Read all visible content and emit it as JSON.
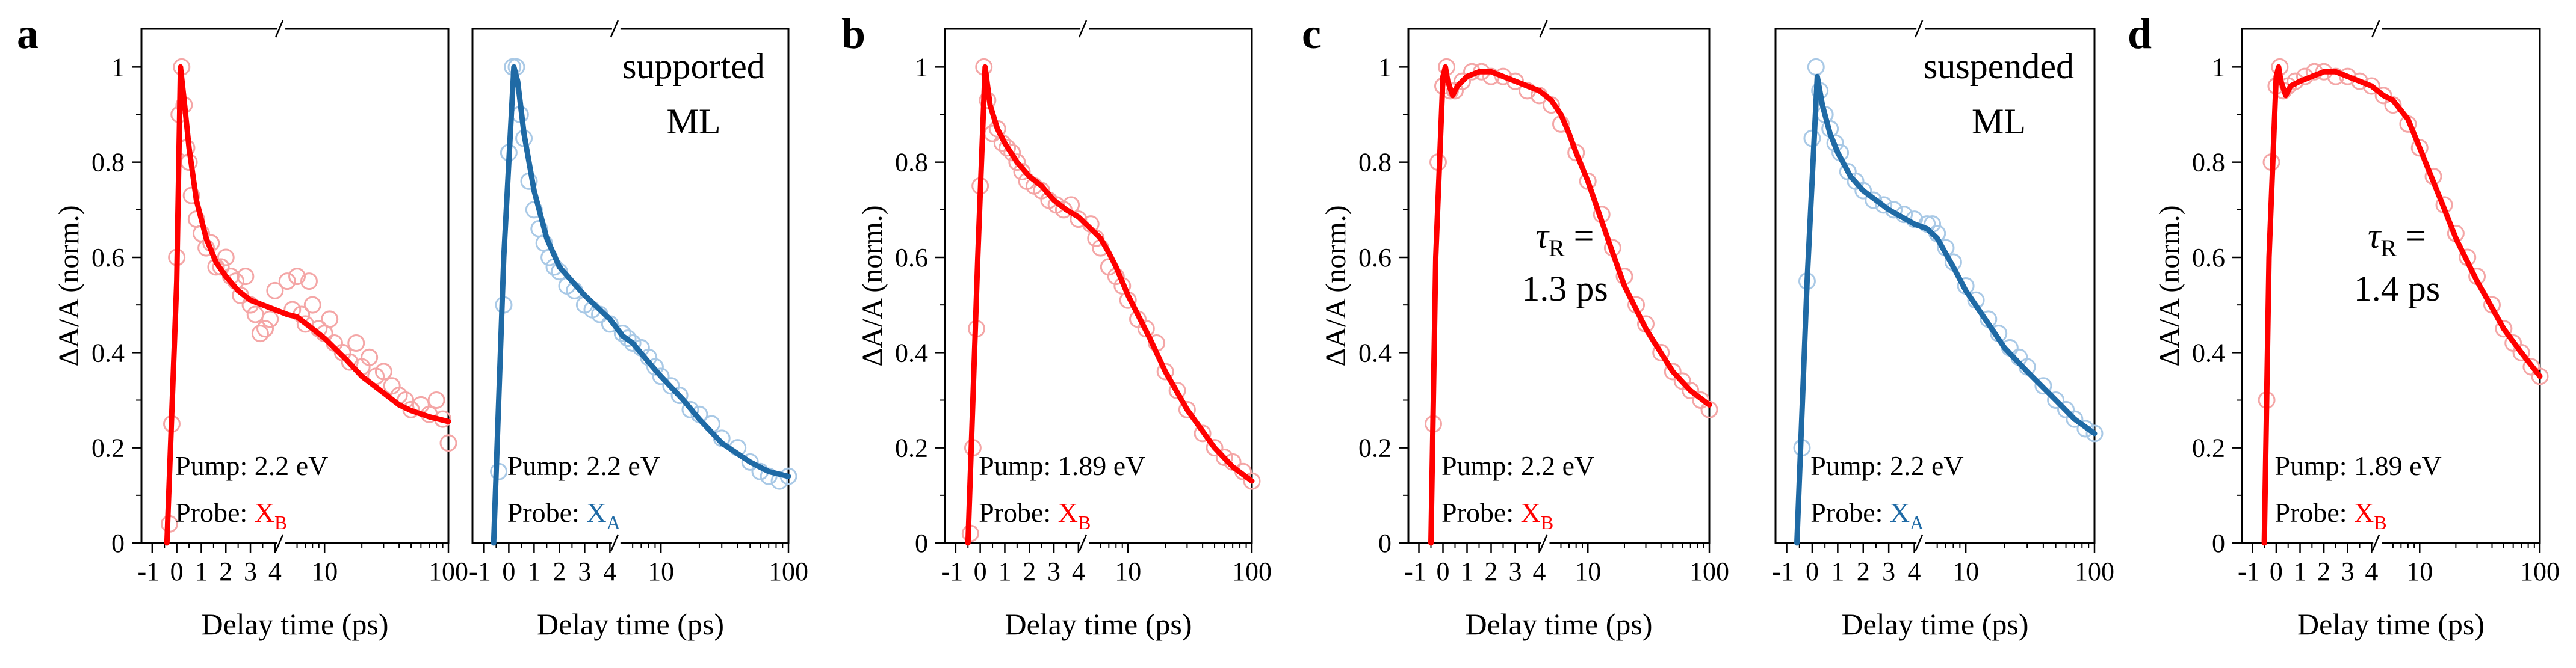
{
  "colors": {
    "red": "#ff0000",
    "pink": "#f4a6a6",
    "blue": "#1f6aa5",
    "lightblue": "#a9c9e6",
    "axis": "#000000"
  },
  "chart_data": [
    {
      "id": "a_xb",
      "panel_letter": "a",
      "type": "line",
      "title": "",
      "xlabel": "Delay time (ps)",
      "ylabel": "ΔA/A (norm.)",
      "ylim": [
        0,
        1.08
      ],
      "xlim": [
        -1,
        100
      ],
      "x_scale": "linear to 4 ps, broken, log from 5 to 100 ps",
      "xticks": [
        "-1",
        "0",
        "1",
        "2",
        "3",
        "4",
        "10",
        "100"
      ],
      "yticks": [
        "0",
        "0.2",
        "0.4",
        "0.6",
        "0.8",
        "1"
      ],
      "overlay_text": [],
      "pump_label": "Pump: 2.2 eV",
      "probe_label": "Probe: ",
      "probe_main": "X",
      "probe_sub": "B",
      "probe_color": "#ff0000",
      "series": [
        {
          "name": "fit",
          "style": "line",
          "color": "#ff0000",
          "x": [
            -0.4,
            0,
            0.15,
            0.3,
            0.5,
            0.8,
            1.2,
            1.6,
            2,
            2.5,
            3,
            3.5,
            4,
            5,
            6,
            8,
            10,
            15,
            20,
            30,
            40,
            50,
            70,
            100
          ],
          "y": [
            0,
            0.55,
            1.0,
            0.93,
            0.83,
            0.72,
            0.64,
            0.59,
            0.56,
            0.53,
            0.51,
            0.5,
            0.49,
            0.48,
            0.475,
            0.45,
            0.43,
            0.385,
            0.35,
            0.315,
            0.29,
            0.278,
            0.265,
            0.255
          ]
        },
        {
          "name": "data",
          "style": "markers",
          "color": "#f4a6a6",
          "x": [
            -0.3,
            -0.2,
            0,
            0.1,
            0.2,
            0.3,
            0.4,
            0.5,
            0.6,
            0.8,
            1,
            1.2,
            1.4,
            1.6,
            1.8,
            2,
            2.2,
            2.4,
            2.6,
            2.8,
            3,
            3.2,
            3.4,
            3.6,
            3.8,
            4,
            5,
            5.5,
            6,
            6.5,
            7,
            7.5,
            8,
            9,
            10,
            11,
            12,
            14,
            16,
            18,
            20,
            23,
            26,
            30,
            35,
            40,
            45,
            50,
            60,
            70,
            80,
            90,
            100
          ],
          "y": [
            0.04,
            0.25,
            0.6,
            0.9,
            1.0,
            0.92,
            0.83,
            0.8,
            0.73,
            0.68,
            0.65,
            0.62,
            0.63,
            0.58,
            0.58,
            0.6,
            0.56,
            0.55,
            0.52,
            0.56,
            0.5,
            0.48,
            0.44,
            0.45,
            0.47,
            0.53,
            0.55,
            0.49,
            0.56,
            0.48,
            0.46,
            0.55,
            0.5,
            0.45,
            0.44,
            0.47,
            0.42,
            0.4,
            0.38,
            0.42,
            0.37,
            0.39,
            0.35,
            0.36,
            0.33,
            0.31,
            0.3,
            0.28,
            0.29,
            0.27,
            0.3,
            0.26,
            0.21
          ]
        }
      ]
    },
    {
      "id": "a_xa",
      "panel_letter": "",
      "type": "line",
      "title": "",
      "xlabel": "Delay time (ps)",
      "ylabel": "",
      "ylim": [
        0,
        1.08
      ],
      "xlim": [
        -1,
        100
      ],
      "x_scale": "linear to 4 ps, broken, log from 5 to 100 ps",
      "xticks": [
        "-1",
        "0",
        "1",
        "2",
        "3",
        "4",
        "10",
        "100"
      ],
      "yticks": [],
      "overlay_text": [
        "supported",
        "ML"
      ],
      "pump_label": "Pump: 2.2 eV",
      "probe_label": "Probe: ",
      "probe_main": "X",
      "probe_sub": "A",
      "probe_color": "#1f6aa5",
      "series": [
        {
          "name": "fit",
          "style": "line",
          "color": "#1f6aa5",
          "x": [
            -0.6,
            -0.2,
            0.2,
            0.35,
            0.6,
            1,
            1.5,
            2,
            2.5,
            3,
            4,
            5,
            6,
            8,
            10,
            15,
            20,
            30,
            50,
            70,
            100
          ],
          "y": [
            0,
            0.6,
            1.0,
            0.97,
            0.86,
            0.74,
            0.64,
            0.58,
            0.55,
            0.52,
            0.47,
            0.435,
            0.42,
            0.38,
            0.35,
            0.3,
            0.26,
            0.21,
            0.17,
            0.15,
            0.14
          ]
        },
        {
          "name": "data",
          "style": "markers",
          "color": "#a9c9e6",
          "x": [
            -0.4,
            -0.2,
            0,
            0.15,
            0.3,
            0.45,
            0.6,
            0.8,
            1,
            1.2,
            1.4,
            1.6,
            1.8,
            2,
            2.3,
            2.6,
            3,
            3.3,
            3.6,
            4,
            5,
            5.5,
            6,
            7,
            8,
            9,
            10,
            12,
            14,
            17,
            20,
            25,
            30,
            40,
            50,
            60,
            70,
            85,
            100
          ],
          "y": [
            0.15,
            0.5,
            0.82,
            1.0,
            1.0,
            0.9,
            0.85,
            0.76,
            0.7,
            0.66,
            0.63,
            0.6,
            0.58,
            0.57,
            0.54,
            0.53,
            0.5,
            0.49,
            0.48,
            0.46,
            0.44,
            0.43,
            0.42,
            0.41,
            0.39,
            0.37,
            0.35,
            0.33,
            0.31,
            0.28,
            0.27,
            0.25,
            0.22,
            0.2,
            0.17,
            0.15,
            0.14,
            0.13,
            0.14
          ]
        }
      ]
    },
    {
      "id": "b_xb",
      "panel_letter": "b",
      "type": "line",
      "title": "",
      "xlabel": "Delay time (ps)",
      "ylabel": "ΔA/A (norm.)",
      "ylim": [
        0,
        1.08
      ],
      "xlim": [
        -1,
        100
      ],
      "x_scale": "linear to 4 ps, broken, log from 5 to 100 ps",
      "xticks": [
        "-1",
        "0",
        "1",
        "2",
        "3",
        "4",
        "10",
        "100"
      ],
      "yticks": [
        "0",
        "0.2",
        "0.4",
        "0.6",
        "0.8",
        "1"
      ],
      "overlay_text": [],
      "pump_label": "Pump: 1.89 eV",
      "probe_label": "Probe: ",
      "probe_main": "X",
      "probe_sub": "B",
      "probe_color": "#ff0000",
      "series": [
        {
          "name": "fit",
          "style": "line",
          "color": "#ff0000",
          "x": [
            -0.5,
            -0.1,
            0.2,
            0.4,
            0.7,
            1,
            1.5,
            2,
            2.5,
            3,
            3.5,
            4,
            5,
            6,
            7,
            8,
            10,
            15,
            20,
            30,
            50,
            70,
            100
          ],
          "y": [
            0,
            0.6,
            1.0,
            0.92,
            0.87,
            0.84,
            0.8,
            0.77,
            0.75,
            0.72,
            0.7,
            0.685,
            0.66,
            0.64,
            0.61,
            0.58,
            0.52,
            0.43,
            0.36,
            0.28,
            0.2,
            0.16,
            0.13
          ]
        },
        {
          "name": "data",
          "style": "markers",
          "color": "#f4a6a6",
          "x": [
            -0.4,
            -0.3,
            -0.15,
            0,
            0.15,
            0.3,
            0.5,
            0.7,
            0.9,
            1.1,
            1.3,
            1.5,
            1.7,
            1.9,
            2.2,
            2.5,
            2.8,
            3.1,
            3.4,
            3.7,
            4,
            5,
            5.5,
            6,
            7,
            8,
            9,
            10,
            12,
            14,
            17,
            20,
            25,
            30,
            40,
            50,
            60,
            70,
            85,
            100
          ],
          "y": [
            0.02,
            0.2,
            0.45,
            0.75,
            1.0,
            0.93,
            0.86,
            0.87,
            0.84,
            0.83,
            0.82,
            0.8,
            0.78,
            0.76,
            0.75,
            0.74,
            0.72,
            0.71,
            0.7,
            0.71,
            0.68,
            0.67,
            0.64,
            0.62,
            0.58,
            0.56,
            0.54,
            0.51,
            0.47,
            0.45,
            0.42,
            0.36,
            0.32,
            0.28,
            0.23,
            0.2,
            0.18,
            0.17,
            0.15,
            0.13
          ]
        }
      ]
    },
    {
      "id": "c_xb",
      "panel_letter": "c",
      "type": "line",
      "title": "",
      "xlabel": "Delay time (ps)",
      "ylabel": "ΔA/A (norm.)",
      "ylim": [
        0,
        1.08
      ],
      "xlim": [
        -1,
        100
      ],
      "x_scale": "linear to 4 ps, broken, log from 5 to 100 ps",
      "xticks": [
        "-1",
        "0",
        "1",
        "2",
        "3",
        "4",
        "10",
        "100"
      ],
      "yticks": [
        "0",
        "0.2",
        "0.4",
        "0.6",
        "0.8",
        "1"
      ],
      "overlay_text": [
        "τR =",
        "1.3 ps"
      ],
      "tau_symbol": "τ",
      "tau_sub": "R",
      "tau_eq": " =",
      "tau_value": "1.3 ps",
      "pump_label": "Pump: 2.2 eV",
      "probe_label": "Probe: ",
      "probe_main": "X",
      "probe_sub": "B",
      "probe_color": "#ff0000",
      "series": [
        {
          "name": "fit",
          "style": "line",
          "color": "#ff0000",
          "x": [
            -0.5,
            -0.3,
            0,
            0.1,
            0.2,
            0.4,
            0.6,
            1,
            1.5,
            2,
            3,
            4,
            5,
            6,
            7,
            8,
            10,
            15,
            20,
            30,
            50,
            70,
            100
          ],
          "y": [
            0,
            0.6,
            0.98,
            1.0,
            0.97,
            0.94,
            0.96,
            0.98,
            0.99,
            0.99,
            0.97,
            0.95,
            0.93,
            0.9,
            0.86,
            0.82,
            0.76,
            0.63,
            0.54,
            0.45,
            0.36,
            0.32,
            0.29
          ]
        },
        {
          "name": "data",
          "style": "markers",
          "color": "#f4a6a6",
          "x": [
            -0.4,
            -0.2,
            0,
            0.15,
            0.3,
            0.5,
            0.8,
            1.2,
            1.6,
            2,
            2.5,
            3,
            3.5,
            4,
            5,
            6,
            8,
            10,
            13,
            16,
            20,
            25,
            30,
            40,
            50,
            60,
            70,
            85,
            100
          ],
          "y": [
            0.25,
            0.8,
            0.96,
            1.0,
            0.95,
            0.95,
            0.97,
            0.99,
            0.99,
            0.98,
            0.98,
            0.97,
            0.95,
            0.94,
            0.92,
            0.88,
            0.82,
            0.76,
            0.69,
            0.62,
            0.56,
            0.5,
            0.46,
            0.4,
            0.36,
            0.34,
            0.32,
            0.3,
            0.28
          ]
        }
      ]
    },
    {
      "id": "c_xa",
      "panel_letter": "",
      "type": "line",
      "title": "",
      "xlabel": "Delay time (ps)",
      "ylabel": "",
      "ylim": [
        0,
        1.08
      ],
      "xlim": [
        -1,
        100
      ],
      "x_scale": "linear to 4 ps, broken, log from 5 to 100 ps",
      "xticks": [
        "-1",
        "0",
        "1",
        "2",
        "3",
        "4",
        "10",
        "100"
      ],
      "yticks": [],
      "overlay_text": [
        "suspended",
        "ML"
      ],
      "pump_label": "Pump: 2.2 eV",
      "probe_label": "Probe: ",
      "probe_main": "X",
      "probe_sub": "A",
      "probe_color": "#1f6aa5",
      "series": [
        {
          "name": "fit",
          "style": "line",
          "color": "#1f6aa5",
          "x": [
            -0.6,
            -0.2,
            0.2,
            0.4,
            0.7,
            1,
            1.5,
            2,
            2.5,
            3,
            4,
            5,
            6,
            8,
            10,
            15,
            20,
            30,
            50,
            70,
            100
          ],
          "y": [
            0,
            0.55,
            0.98,
            0.92,
            0.86,
            0.82,
            0.77,
            0.74,
            0.72,
            0.7,
            0.67,
            0.66,
            0.64,
            0.58,
            0.53,
            0.46,
            0.41,
            0.36,
            0.3,
            0.26,
            0.23
          ]
        },
        {
          "name": "data",
          "style": "markers",
          "color": "#a9c9e6",
          "x": [
            -0.4,
            -0.2,
            0,
            0.15,
            0.3,
            0.5,
            0.7,
            0.9,
            1.1,
            1.4,
            1.7,
            2,
            2.4,
            2.8,
            3.2,
            3.6,
            4,
            5,
            5.5,
            6,
            7,
            8,
            10,
            12,
            15,
            18,
            22,
            26,
            30,
            40,
            50,
            60,
            70,
            85,
            100
          ],
          "y": [
            0.2,
            0.55,
            0.85,
            1.0,
            0.95,
            0.9,
            0.87,
            0.84,
            0.82,
            0.78,
            0.76,
            0.74,
            0.72,
            0.71,
            0.7,
            0.69,
            0.68,
            0.67,
            0.67,
            0.65,
            0.62,
            0.59,
            0.54,
            0.51,
            0.47,
            0.44,
            0.41,
            0.39,
            0.37,
            0.33,
            0.3,
            0.28,
            0.26,
            0.24,
            0.23
          ]
        }
      ]
    },
    {
      "id": "d_xb",
      "panel_letter": "d",
      "type": "line",
      "title": "",
      "xlabel": "Delay time (ps)",
      "ylabel": "ΔA/A (norm.)",
      "ylim": [
        0,
        1.08
      ],
      "xlim": [
        -1,
        100
      ],
      "x_scale": "linear to 4 ps, broken, log from 5 to 100 ps",
      "xticks": [
        "-1",
        "0",
        "1",
        "2",
        "3",
        "4",
        "10",
        "100"
      ],
      "yticks": [
        "0",
        "0.2",
        "0.4",
        "0.6",
        "0.8",
        "1"
      ],
      "overlay_text": [
        "τR =",
        "1.4 ps"
      ],
      "tau_symbol": "τ",
      "tau_sub": "R",
      "tau_eq": " =",
      "tau_value": "1.4 ps",
      "pump_label": "Pump: 1.89 eV",
      "probe_label": "Probe: ",
      "probe_main": "X",
      "probe_sub": "B",
      "probe_color": "#ff0000",
      "series": [
        {
          "name": "fit",
          "style": "line",
          "color": "#ff0000",
          "x": [
            -0.5,
            -0.3,
            0,
            0.1,
            0.2,
            0.4,
            0.6,
            1,
            1.5,
            2,
            2.5,
            3,
            4,
            5,
            6,
            8,
            10,
            15,
            20,
            30,
            50,
            70,
            100
          ],
          "y": [
            0,
            0.6,
            0.98,
            1.0,
            0.97,
            0.94,
            0.96,
            0.97,
            0.98,
            0.99,
            0.99,
            0.98,
            0.96,
            0.94,
            0.93,
            0.89,
            0.83,
            0.72,
            0.64,
            0.55,
            0.45,
            0.4,
            0.35
          ]
        },
        {
          "name": "data",
          "style": "markers",
          "color": "#f4a6a6",
          "x": [
            -0.4,
            -0.2,
            0,
            0.15,
            0.3,
            0.5,
            0.8,
            1.2,
            1.6,
            2,
            2.5,
            3,
            3.5,
            4,
            5,
            6,
            8,
            10,
            13,
            16,
            20,
            25,
            30,
            40,
            50,
            60,
            70,
            85,
            100
          ],
          "y": [
            0.3,
            0.8,
            0.96,
            1.0,
            0.95,
            0.96,
            0.97,
            0.98,
            0.99,
            0.99,
            0.98,
            0.98,
            0.97,
            0.96,
            0.94,
            0.92,
            0.88,
            0.83,
            0.77,
            0.71,
            0.65,
            0.6,
            0.56,
            0.5,
            0.45,
            0.42,
            0.4,
            0.37,
            0.35
          ]
        }
      ]
    }
  ]
}
